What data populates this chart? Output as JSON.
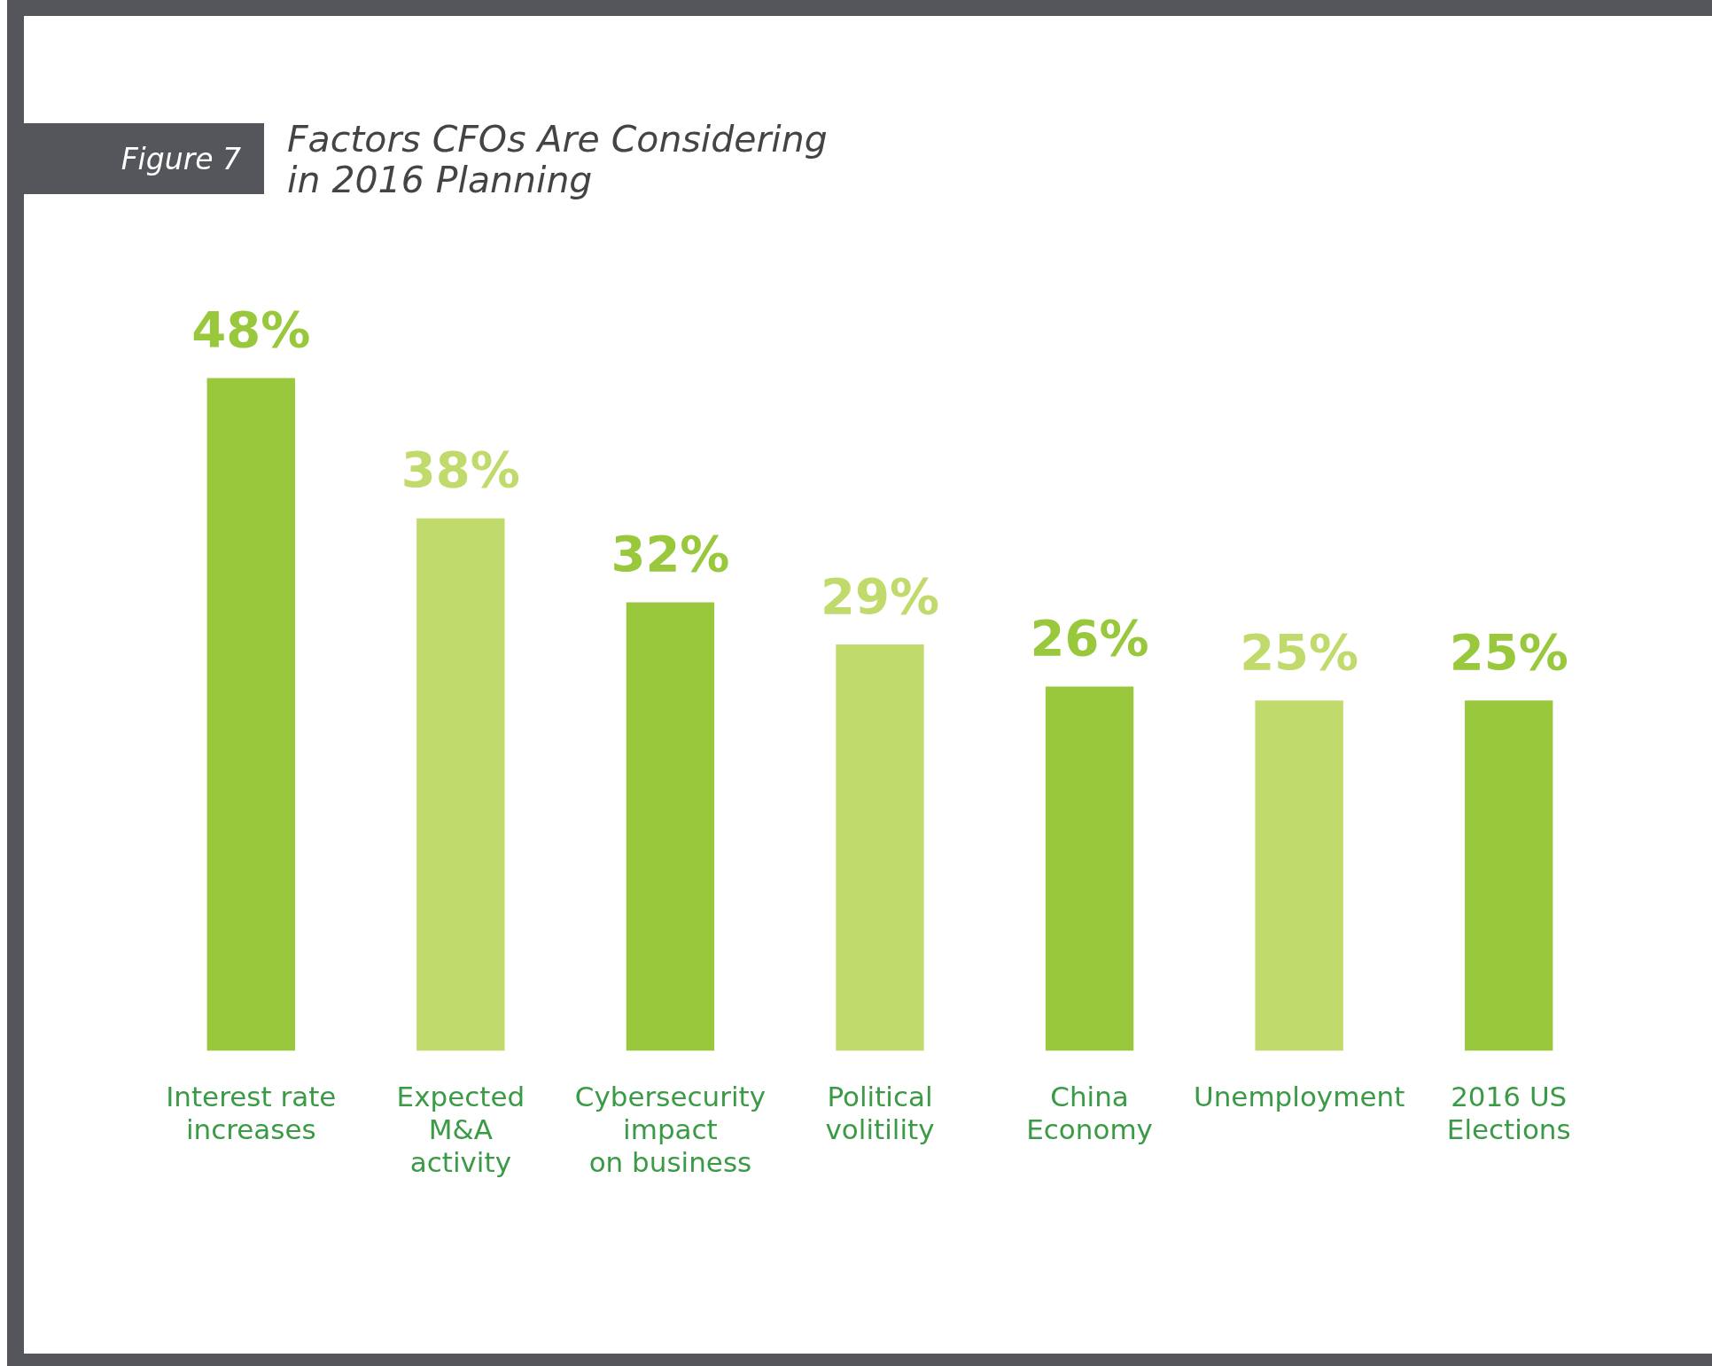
{
  "chart_data": {
    "type": "bar",
    "title": "Factors CFOs Are Considering in 2016 Planning",
    "annotations": [
      "Figure 7"
    ],
    "categories": [
      "Interest rate\nincreases",
      "Expected\nM&A\nactivity",
      "Cybersecurity\nimpact\non business",
      "Political\nvolitility",
      "China\nEconomy",
      "Unemployment",
      "2016 US\nElections"
    ],
    "values": [
      48,
      38,
      32,
      29,
      26,
      25,
      25
    ],
    "colors": [
      "#99c83d",
      "#c0da6b",
      "#99c83d",
      "#c0da6b",
      "#99c83d",
      "#c0da6b",
      "#99c83d"
    ],
    "value_labels": [
      "48%",
      "38%",
      "32%",
      "29%",
      "26%",
      "25%",
      "25%"
    ],
    "grid": false,
    "legend": false
  }
}
